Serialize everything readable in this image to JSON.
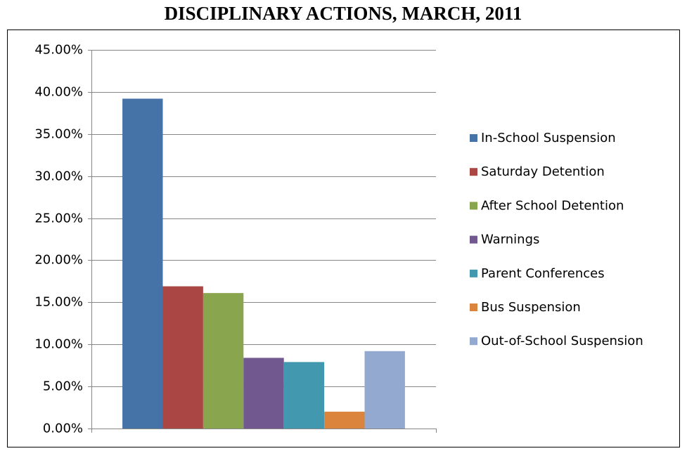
{
  "chart_data": {
    "type": "bar",
    "title": "DISCIPLINARY ACTIONS, MARCH, 2011",
    "categories": [
      null
    ],
    "series": [
      {
        "name": "In-School Suspension",
        "color": "#4572a7",
        "values": [
          39.2
        ]
      },
      {
        "name": "Saturday Detention",
        "color": "#aa4643",
        "values": [
          16.9
        ]
      },
      {
        "name": "After School Detention",
        "color": "#89a54e",
        "values": [
          16.1
        ]
      },
      {
        "name": "Warnings",
        "color": "#71588f",
        "values": [
          8.4
        ]
      },
      {
        "name": "Parent Conferences",
        "color": "#4198af",
        "values": [
          7.9
        ]
      },
      {
        "name": "Bus Suspension",
        "color": "#db843d",
        "values": [
          2.0
        ]
      },
      {
        "name": "Out-of-School Suspension",
        "color": "#93a9cf",
        "values": [
          9.2
        ]
      }
    ],
    "ylim": [
      0,
      45
    ],
    "yticks": [
      {
        "value": 0,
        "label": "0.00%"
      },
      {
        "value": 5,
        "label": "5.00%"
      },
      {
        "value": 10,
        "label": "10.00%"
      },
      {
        "value": 15,
        "label": "15.00%"
      },
      {
        "value": 20,
        "label": "20.00%"
      },
      {
        "value": 25,
        "label": "25.00%"
      },
      {
        "value": 30,
        "label": "30.00%"
      },
      {
        "value": 35,
        "label": "35.00%"
      },
      {
        "value": 40,
        "label": "40.00%"
      },
      {
        "value": 45,
        "label": "45.00%"
      }
    ],
    "grid": true,
    "legend": "right"
  }
}
